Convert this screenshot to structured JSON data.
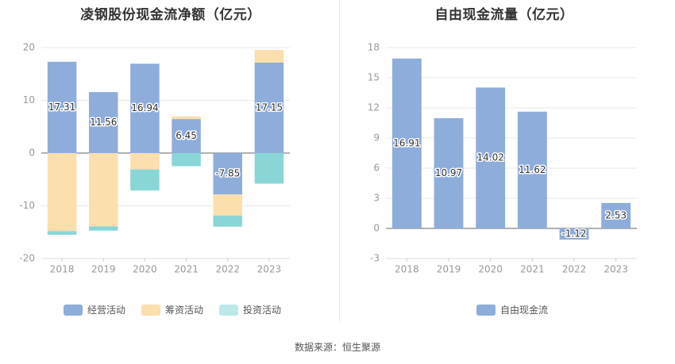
{
  "colors": {
    "operating": "#8eaddb",
    "financing": "#fbdfad",
    "investing": "#8ad6d7",
    "free_cash_flow": "#8eaddb",
    "axis_text": "#999999",
    "grid": "#e8e8e8"
  },
  "source_text": "数据来源：恒生聚源",
  "chart_data": [
    {
      "type": "bar",
      "stacked": true,
      "title": "凌钢股份现金流净额（亿元）",
      "categories": [
        "2018",
        "2019",
        "2020",
        "2021",
        "2022",
        "2023"
      ],
      "ylim": [
        -20,
        20
      ],
      "yticks": [
        -20,
        -10,
        0,
        10,
        20
      ],
      "grid": true,
      "legend_position": "bottom",
      "series": [
        {
          "name": "经营活动",
          "values": [
            17.31,
            11.56,
            16.94,
            6.45,
            -7.85,
            17.15
          ],
          "labeled": true
        },
        {
          "name": "筹资活动",
          "values": [
            -14.8,
            -13.9,
            -3.1,
            0.5,
            -4.0,
            2.4
          ],
          "labeled": false
        },
        {
          "name": "投资活动",
          "values": [
            -0.7,
            -0.8,
            -4.0,
            -2.5,
            -2.1,
            -5.8
          ],
          "labeled": false
        }
      ]
    },
    {
      "type": "bar",
      "title": "自由现金流量（亿元）",
      "categories": [
        "2018",
        "2019",
        "2020",
        "2021",
        "2022",
        "2023"
      ],
      "ylim": [
        -3,
        18
      ],
      "yticks": [
        -3,
        0,
        3,
        6,
        9,
        12,
        15,
        18
      ],
      "grid": true,
      "legend_position": "bottom",
      "series": [
        {
          "name": "自由现金流",
          "values": [
            16.91,
            10.97,
            14.02,
            11.62,
            -1.12,
            2.53
          ],
          "labeled": true
        }
      ]
    }
  ]
}
